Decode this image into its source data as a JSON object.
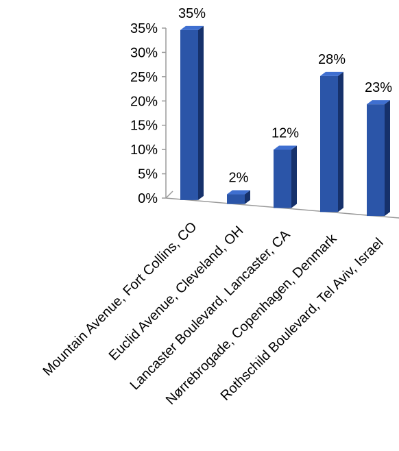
{
  "chart_data": {
    "type": "bar",
    "title": "",
    "xlabel": "",
    "ylabel": "",
    "categories": [
      "Mountain Avenue, Fort Collins, CO",
      "Euclid Avenue, Cleveland, OH",
      "Lancaster Boulevard, Lancaster,  CA",
      "Nørrebrogade, Copenhagen,  Denmark",
      "Rothschild Boulevard, Tel Aviv, Israel"
    ],
    "values": [
      35,
      2,
      12,
      28,
      23
    ],
    "data_labels": [
      "35%",
      "2%",
      "12%",
      "28%",
      "23%"
    ],
    "ylim": [
      0,
      35
    ],
    "y_ticks": [
      0,
      5,
      10,
      15,
      20,
      25,
      30,
      35
    ],
    "y_tick_labels": [
      "0%",
      "5%",
      "10%",
      "15%",
      "20%",
      "25%",
      "30%",
      "35%"
    ],
    "style": "3d-column",
    "grid": false,
    "legend": "none",
    "colors": {
      "bar_front": "#2b55a8",
      "bar_side": "#16316b",
      "bar_top": "#3f6fd0",
      "axis": "#9a9a9a"
    }
  }
}
